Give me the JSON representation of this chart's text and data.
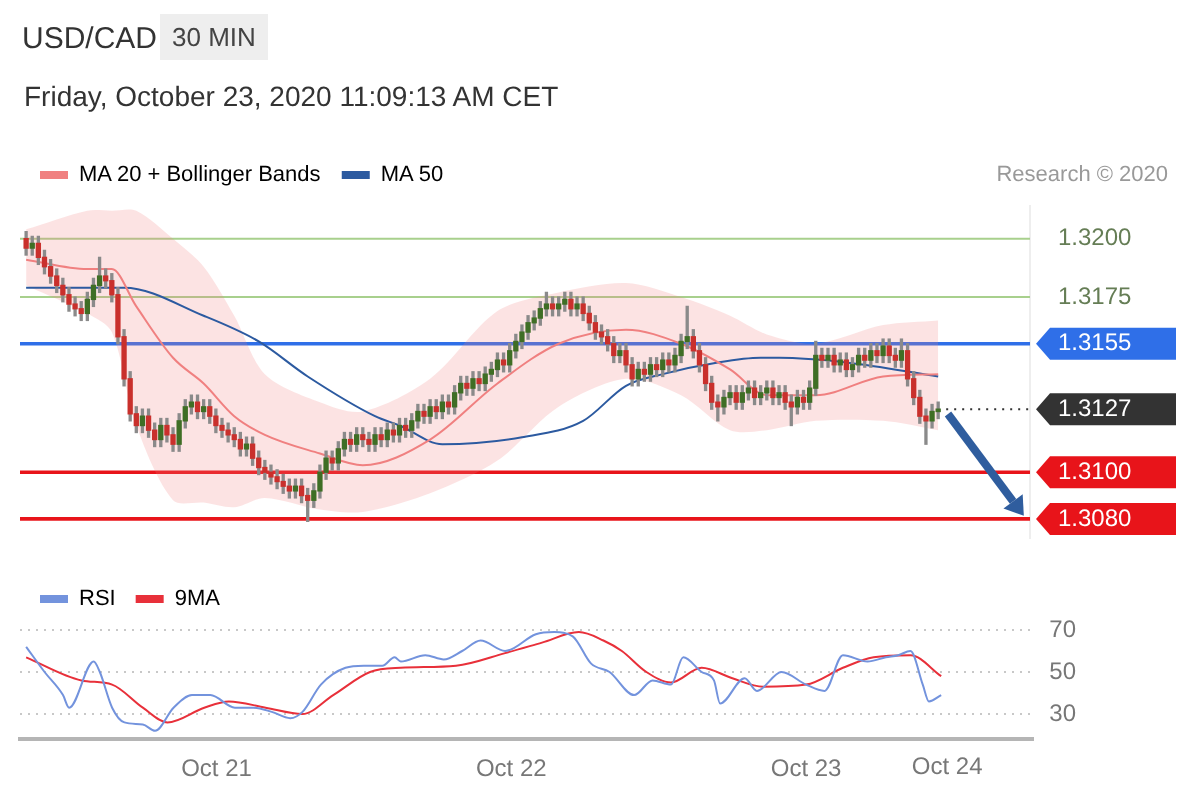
{
  "chart_data": [
    {
      "type": "candlestick",
      "title": "USD/CAD",
      "subtitle": "30 MIN",
      "annotations": [
        "Friday, October 23, 2020 11:09:13 AM CET",
        "Research © 2020"
      ],
      "x": [
        "2020-10-20T08:30",
        "2020-10-20T09:00",
        "2020-10-20T09:30",
        "2020-10-20T10:00",
        "2020-10-20T10:30",
        "2020-10-20T11:00",
        "2020-10-20T11:30",
        "2020-10-20T12:00",
        "2020-10-20T12:30",
        "2020-10-20T13:00",
        "2020-10-20T13:30",
        "2020-10-20T14:00",
        "2020-10-20T14:30",
        "2020-10-20T15:00",
        "2020-10-20T15:30",
        "2020-10-20T16:00",
        "2020-10-20T16:30",
        "2020-10-20T17:00",
        "2020-10-20T17:30",
        "2020-10-20T18:00",
        "2020-10-20T18:30",
        "2020-10-20T19:00",
        "2020-10-20T19:30",
        "2020-10-20T20:00",
        "2020-10-20T20:30",
        "2020-10-20T21:00",
        "2020-10-20T21:30",
        "2020-10-20T22:00",
        "2020-10-20T22:30",
        "2020-10-20T23:00",
        "2020-10-20T23:30",
        "2020-10-21T00:00",
        "2020-10-21T00:30",
        "2020-10-21T01:00",
        "2020-10-21T01:30",
        "2020-10-21T02:00",
        "2020-10-21T02:30",
        "2020-10-21T03:00",
        "2020-10-21T03:30",
        "2020-10-21T04:00",
        "2020-10-21T04:30",
        "2020-10-21T05:00",
        "2020-10-21T05:30",
        "2020-10-21T06:00",
        "2020-10-21T06:30",
        "2020-10-21T07:00",
        "2020-10-21T07:30",
        "2020-10-21T08:00",
        "2020-10-21T08:30",
        "2020-10-21T09:00",
        "2020-10-21T09:30",
        "2020-10-21T10:00",
        "2020-10-21T10:30",
        "2020-10-21T11:00",
        "2020-10-21T11:30",
        "2020-10-21T12:00",
        "2020-10-21T12:30",
        "2020-10-21T13:00",
        "2020-10-21T13:30",
        "2020-10-21T14:00",
        "2020-10-21T14:30",
        "2020-10-21T15:00",
        "2020-10-21T15:30",
        "2020-10-21T16:00",
        "2020-10-21T16:30",
        "2020-10-21T17:00",
        "2020-10-21T17:30",
        "2020-10-21T18:00",
        "2020-10-21T18:30",
        "2020-10-21T19:00",
        "2020-10-21T19:30",
        "2020-10-21T20:00",
        "2020-10-21T20:30",
        "2020-10-21T21:00",
        "2020-10-21T21:30",
        "2020-10-21T22:00",
        "2020-10-21T22:30",
        "2020-10-21T23:00",
        "2020-10-21T23:30",
        "2020-10-22T00:00",
        "2020-10-22T00:30",
        "2020-10-22T01:00",
        "2020-10-22T01:30",
        "2020-10-22T02:00",
        "2020-10-22T02:30",
        "2020-10-22T03:00",
        "2020-10-22T03:30",
        "2020-10-22T04:00",
        "2020-10-22T04:30",
        "2020-10-22T05:00",
        "2020-10-22T05:30",
        "2020-10-22T06:00",
        "2020-10-22T06:30",
        "2020-10-22T07:00",
        "2020-10-22T07:30",
        "2020-10-22T08:00",
        "2020-10-22T08:30",
        "2020-10-22T09:00",
        "2020-10-22T09:30",
        "2020-10-22T10:00",
        "2020-10-22T10:30",
        "2020-10-22T11:00",
        "2020-10-22T11:30",
        "2020-10-22T12:00",
        "2020-10-22T12:30",
        "2020-10-22T13:00",
        "2020-10-22T13:30",
        "2020-10-22T14:00",
        "2020-10-22T14:30",
        "2020-10-22T15:00",
        "2020-10-22T15:30",
        "2020-10-22T16:00",
        "2020-10-22T16:30",
        "2020-10-22T17:00",
        "2020-10-22T17:30",
        "2020-10-22T18:00",
        "2020-10-22T18:30",
        "2020-10-22T19:00",
        "2020-10-22T19:30",
        "2020-10-22T20:00",
        "2020-10-22T20:30",
        "2020-10-22T21:00",
        "2020-10-22T21:30",
        "2020-10-22T22:00",
        "2020-10-22T22:30",
        "2020-10-22T23:00",
        "2020-10-22T23:30",
        "2020-10-23T00:00",
        "2020-10-23T00:30",
        "2020-10-23T01:00",
        "2020-10-23T01:30",
        "2020-10-23T02:00",
        "2020-10-23T02:30",
        "2020-10-23T03:00",
        "2020-10-23T03:30",
        "2020-10-23T04:00",
        "2020-10-23T04:30",
        "2020-10-23T05:00",
        "2020-10-23T05:30",
        "2020-10-23T06:00",
        "2020-10-23T06:30",
        "2020-10-23T07:00",
        "2020-10-23T07:30",
        "2020-10-23T08:00",
        "2020-10-23T08:30",
        "2020-10-23T09:00",
        "2020-10-23T09:30",
        "2020-10-23T10:00",
        "2020-10-23T10:30",
        "2020-10-23T11:00"
      ],
      "ohlc": [
        [
          1.32,
          1.3203,
          1.3193,
          1.3196
        ],
        [
          1.3196,
          1.3201,
          1.3193,
          1.3198
        ],
        [
          1.3198,
          1.3201,
          1.3189,
          1.3192
        ],
        [
          1.3192,
          1.3195,
          1.3185,
          1.3188
        ],
        [
          1.3188,
          1.3191,
          1.3181,
          1.3184
        ],
        [
          1.3184,
          1.3187,
          1.3177,
          1.318
        ],
        [
          1.318,
          1.3183,
          1.3173,
          1.3176
        ],
        [
          1.3176,
          1.3179,
          1.3169,
          1.3172
        ],
        [
          1.3172,
          1.3175,
          1.3167,
          1.317
        ],
        [
          1.317,
          1.3173,
          1.3165,
          1.3168
        ],
        [
          1.3168,
          1.3177,
          1.3165,
          1.3174
        ],
        [
          1.3174,
          1.3183,
          1.3171,
          1.318
        ],
        [
          1.318,
          1.3192,
          1.3177,
          1.3184
        ],
        [
          1.3184,
          1.3187,
          1.3179,
          1.3182
        ],
        [
          1.3182,
          1.3185,
          1.3173,
          1.3176
        ],
        [
          1.3176,
          1.3179,
          1.3155,
          1.3158
        ],
        [
          1.3158,
          1.3161,
          1.3137,
          1.314
        ],
        [
          1.314,
          1.3143,
          1.3122,
          1.3125
        ],
        [
          1.3125,
          1.3128,
          1.3117,
          1.312
        ],
        [
          1.312,
          1.3127,
          1.3117,
          1.3124
        ],
        [
          1.3124,
          1.3127,
          1.3115,
          1.3118
        ],
        [
          1.3118,
          1.3121,
          1.3111,
          1.3114
        ],
        [
          1.3114,
          1.3123,
          1.3111,
          1.312
        ],
        [
          1.312,
          1.3123,
          1.3113,
          1.3116
        ],
        [
          1.3116,
          1.3119,
          1.3109,
          1.3112
        ],
        [
          1.3112,
          1.3125,
          1.3109,
          1.3122
        ],
        [
          1.3122,
          1.3131,
          1.3119,
          1.3128
        ],
        [
          1.3128,
          1.3133,
          1.3125,
          1.313
        ],
        [
          1.313,
          1.3133,
          1.3123,
          1.3126
        ],
        [
          1.3126,
          1.3131,
          1.3123,
          1.3128
        ],
        [
          1.3128,
          1.3131,
          1.3121,
          1.3124
        ],
        [
          1.3124,
          1.3127,
          1.3117,
          1.312
        ],
        [
          1.312,
          1.3123,
          1.3115,
          1.3118
        ],
        [
          1.3118,
          1.3121,
          1.3113,
          1.3116
        ],
        [
          1.3116,
          1.3119,
          1.3111,
          1.3114
        ],
        [
          1.3114,
          1.3117,
          1.3107,
          1.311
        ],
        [
          1.311,
          1.3115,
          1.3107,
          1.3112
        ],
        [
          1.3112,
          1.3115,
          1.3103,
          1.3106
        ],
        [
          1.3106,
          1.3109,
          1.3099,
          1.3102
        ],
        [
          1.3102,
          1.3105,
          1.3097,
          1.31
        ],
        [
          1.31,
          1.3103,
          1.3095,
          1.3098
        ],
        [
          1.3098,
          1.3101,
          1.3093,
          1.3096
        ],
        [
          1.3096,
          1.3099,
          1.3091,
          1.3094
        ],
        [
          1.3094,
          1.3097,
          1.3089,
          1.3092
        ],
        [
          1.3092,
          1.3097,
          1.3089,
          1.3094
        ],
        [
          1.3094,
          1.3097,
          1.3087,
          1.309
        ],
        [
          1.309,
          1.3093,
          1.3079,
          1.3088
        ],
        [
          1.3088,
          1.3095,
          1.3085,
          1.3092
        ],
        [
          1.3092,
          1.3103,
          1.3089,
          1.31
        ],
        [
          1.31,
          1.3109,
          1.3097,
          1.3106
        ],
        [
          1.3106,
          1.3109,
          1.3101,
          1.3104
        ],
        [
          1.3104,
          1.3113,
          1.3101,
          1.311
        ],
        [
          1.311,
          1.3117,
          1.3107,
          1.3114
        ],
        [
          1.3114,
          1.3117,
          1.3109,
          1.3112
        ],
        [
          1.3112,
          1.3119,
          1.3109,
          1.3116
        ],
        [
          1.3116,
          1.3119,
          1.3111,
          1.3114
        ],
        [
          1.3114,
          1.3117,
          1.3109,
          1.3112
        ],
        [
          1.3112,
          1.3119,
          1.3109,
          1.3116
        ],
        [
          1.3116,
          1.3119,
          1.3111,
          1.3114
        ],
        [
          1.3114,
          1.3121,
          1.3111,
          1.3118
        ],
        [
          1.3118,
          1.3121,
          1.3113,
          1.3116
        ],
        [
          1.3116,
          1.3123,
          1.3113,
          1.312
        ],
        [
          1.312,
          1.3123,
          1.3115,
          1.3118
        ],
        [
          1.3118,
          1.3125,
          1.3115,
          1.3122
        ],
        [
          1.3122,
          1.3129,
          1.3119,
          1.3126
        ],
        [
          1.3126,
          1.3129,
          1.3121,
          1.3124
        ],
        [
          1.3124,
          1.3131,
          1.3121,
          1.3128
        ],
        [
          1.3128,
          1.3131,
          1.3123,
          1.3126
        ],
        [
          1.3126,
          1.3133,
          1.3123,
          1.313
        ],
        [
          1.313,
          1.3133,
          1.3125,
          1.3128
        ],
        [
          1.3128,
          1.3137,
          1.3125,
          1.3134
        ],
        [
          1.3134,
          1.3141,
          1.3131,
          1.3138
        ],
        [
          1.3138,
          1.3141,
          1.3133,
          1.3136
        ],
        [
          1.3136,
          1.3143,
          1.3133,
          1.314
        ],
        [
          1.314,
          1.3143,
          1.3135,
          1.3138
        ],
        [
          1.3138,
          1.3145,
          1.3135,
          1.3142
        ],
        [
          1.3142,
          1.3147,
          1.3139,
          1.3144
        ],
        [
          1.3144,
          1.3151,
          1.3141,
          1.3148
        ],
        [
          1.3148,
          1.3151,
          1.3143,
          1.3146
        ],
        [
          1.3146,
          1.3155,
          1.3143,
          1.3152
        ],
        [
          1.3152,
          1.3159,
          1.3149,
          1.3156
        ],
        [
          1.3156,
          1.3163,
          1.3153,
          1.316
        ],
        [
          1.316,
          1.3167,
          1.3157,
          1.3164
        ],
        [
          1.3164,
          1.3169,
          1.3161,
          1.3166
        ],
        [
          1.3166,
          1.3173,
          1.3163,
          1.317
        ],
        [
          1.317,
          1.3177,
          1.3167,
          1.3172
        ],
        [
          1.3172,
          1.3175,
          1.3167,
          1.317
        ],
        [
          1.317,
          1.3175,
          1.3167,
          1.3172
        ],
        [
          1.3172,
          1.3177,
          1.3169,
          1.3174
        ],
        [
          1.3174,
          1.3177,
          1.3167,
          1.317
        ],
        [
          1.317,
          1.3175,
          1.3167,
          1.3172
        ],
        [
          1.3172,
          1.3175,
          1.3165,
          1.3168
        ],
        [
          1.3168,
          1.3171,
          1.3161,
          1.3164
        ],
        [
          1.3164,
          1.3167,
          1.3157,
          1.316
        ],
        [
          1.316,
          1.3163,
          1.3155,
          1.3158
        ],
        [
          1.3158,
          1.3161,
          1.3152,
          1.3155
        ],
        [
          1.3155,
          1.3158,
          1.3147,
          1.315
        ],
        [
          1.315,
          1.3155,
          1.3147,
          1.3152
        ],
        [
          1.3152,
          1.3155,
          1.3143,
          1.3146
        ],
        [
          1.3146,
          1.3149,
          1.3137,
          1.314
        ],
        [
          1.314,
          1.3147,
          1.3137,
          1.3144
        ],
        [
          1.3144,
          1.3147,
          1.3139,
          1.3142
        ],
        [
          1.3142,
          1.3149,
          1.3139,
          1.3146
        ],
        [
          1.3146,
          1.3149,
          1.3141,
          1.3144
        ],
        [
          1.3144,
          1.3151,
          1.3141,
          1.3148
        ],
        [
          1.3148,
          1.3151,
          1.3143,
          1.3146
        ],
        [
          1.3146,
          1.3153,
          1.3143,
          1.315
        ],
        [
          1.315,
          1.3159,
          1.3147,
          1.3156
        ],
        [
          1.3156,
          1.3171,
          1.3153,
          1.3158
        ],
        [
          1.3158,
          1.3161,
          1.3149,
          1.3152
        ],
        [
          1.3152,
          1.3155,
          1.3143,
          1.3146
        ],
        [
          1.3146,
          1.3149,
          1.3135,
          1.3138
        ],
        [
          1.3138,
          1.3141,
          1.3127,
          1.313
        ],
        [
          1.313,
          1.3133,
          1.3122,
          1.3128
        ],
        [
          1.3128,
          1.3135,
          1.3125,
          1.3132
        ],
        [
          1.3132,
          1.3137,
          1.3129,
          1.3134
        ],
        [
          1.3134,
          1.3137,
          1.3127,
          1.313
        ],
        [
          1.313,
          1.3137,
          1.3127,
          1.3134
        ],
        [
          1.3134,
          1.3139,
          1.3131,
          1.3136
        ],
        [
          1.3136,
          1.3139,
          1.3129,
          1.3132
        ],
        [
          1.3132,
          1.3137,
          1.3129,
          1.3134
        ],
        [
          1.3134,
          1.3139,
          1.3131,
          1.3136
        ],
        [
          1.3136,
          1.3139,
          1.3129,
          1.3132
        ],
        [
          1.3132,
          1.3137,
          1.3129,
          1.3134
        ],
        [
          1.3134,
          1.3137,
          1.3127,
          1.313
        ],
        [
          1.313,
          1.3133,
          1.312,
          1.3128
        ],
        [
          1.3128,
          1.3135,
          1.3125,
          1.3132
        ],
        [
          1.3132,
          1.3135,
          1.3127,
          1.313
        ],
        [
          1.313,
          1.3139,
          1.3127,
          1.3136
        ],
        [
          1.3136,
          1.3156,
          1.3133,
          1.315
        ],
        [
          1.315,
          1.3153,
          1.3145,
          1.3148
        ],
        [
          1.3148,
          1.3153,
          1.3145,
          1.315
        ],
        [
          1.315,
          1.3153,
          1.3143,
          1.3146
        ],
        [
          1.3146,
          1.3151,
          1.3143,
          1.3148
        ],
        [
          1.3148,
          1.3151,
          1.3141,
          1.3144
        ],
        [
          1.3144,
          1.3149,
          1.3141,
          1.3146
        ],
        [
          1.3146,
          1.3153,
          1.3143,
          1.315
        ],
        [
          1.315,
          1.3153,
          1.3145,
          1.3148
        ],
        [
          1.3148,
          1.3155,
          1.3145,
          1.3152
        ],
        [
          1.3152,
          1.3155,
          1.3147,
          1.315
        ],
        [
          1.315,
          1.3157,
          1.3147,
          1.3154
        ],
        [
          1.3154,
          1.3157,
          1.3147,
          1.315
        ],
        [
          1.315,
          1.3153,
          1.3145,
          1.3148
        ],
        [
          1.3148,
          1.3157,
          1.3145,
          1.3152
        ],
        [
          1.3152,
          1.3155,
          1.3137,
          1.314
        ],
        [
          1.314,
          1.3143,
          1.3129,
          1.3132
        ],
        [
          1.3132,
          1.3135,
          1.3121,
          1.3124
        ],
        [
          1.3124,
          1.3127,
          1.3112,
          1.3122
        ],
        [
          1.3122,
          1.3129,
          1.3119,
          1.3126
        ],
        [
          1.3126,
          1.313,
          1.3123,
          1.3127
        ]
      ],
      "colors": [
        "#c9302c",
        "#3f6e25",
        "#c9302c",
        "#c9302c",
        "#c9302c",
        "#c9302c",
        "#c9302c",
        "#c9302c",
        "#c9302c",
        "#c9302c",
        "#3f6e25",
        "#3f6e25",
        "#3f6e25",
        "#c9302c",
        "#c9302c",
        "#c9302c",
        "#c9302c",
        "#c9302c",
        "#c9302c",
        "#3f6e25",
        "#c9302c",
        "#c9302c",
        "#3f6e25",
        "#c9302c",
        "#c9302c",
        "#3f6e25",
        "#3f6e25",
        "#3f6e25",
        "#c9302c",
        "#3f6e25",
        "#c9302c",
        "#c9302c",
        "#c9302c",
        "#c9302c",
        "#c9302c",
        "#c9302c",
        "#3f6e25",
        "#c9302c",
        "#c9302c",
        "#c9302c",
        "#c9302c",
        "#c9302c",
        "#c9302c",
        "#c9302c",
        "#3f6e25",
        "#c9302c",
        "#c9302c",
        "#3f6e25",
        "#3f6e25",
        "#3f6e25",
        "#c9302c",
        "#3f6e25",
        "#3f6e25",
        "#c9302c",
        "#3f6e25",
        "#c9302c",
        "#c9302c",
        "#3f6e25",
        "#c9302c",
        "#3f6e25",
        "#c9302c",
        "#3f6e25",
        "#c9302c",
        "#3f6e25",
        "#3f6e25",
        "#c9302c",
        "#3f6e25",
        "#c9302c",
        "#3f6e25",
        "#c9302c",
        "#3f6e25",
        "#3f6e25",
        "#c9302c",
        "#3f6e25",
        "#c9302c",
        "#3f6e25",
        "#3f6e25",
        "#3f6e25",
        "#c9302c",
        "#3f6e25",
        "#3f6e25",
        "#3f6e25",
        "#3f6e25",
        "#3f6e25",
        "#3f6e25",
        "#3f6e25",
        "#c9302c",
        "#3f6e25",
        "#3f6e25",
        "#c9302c",
        "#3f6e25",
        "#c9302c",
        "#c9302c",
        "#c9302c",
        "#c9302c",
        "#c9302c",
        "#c9302c",
        "#3f6e25",
        "#c9302c",
        "#c9302c",
        "#3f6e25",
        "#c9302c",
        "#3f6e25",
        "#c9302c",
        "#3f6e25",
        "#c9302c",
        "#3f6e25",
        "#3f6e25",
        "#3f6e25",
        "#c9302c",
        "#c9302c",
        "#c9302c",
        "#c9302c",
        "#c9302c",
        "#3f6e25",
        "#3f6e25",
        "#c9302c",
        "#3f6e25",
        "#3f6e25",
        "#c9302c",
        "#3f6e25",
        "#3f6e25",
        "#c9302c",
        "#3f6e25",
        "#c9302c",
        "#c9302c",
        "#3f6e25",
        "#c9302c",
        "#3f6e25",
        "#3f6e25",
        "#c9302c",
        "#3f6e25",
        "#c9302c",
        "#3f6e25",
        "#c9302c",
        "#3f6e25",
        "#3f6e25",
        "#c9302c",
        "#3f6e25",
        "#c9302c",
        "#3f6e25",
        "#c9302c",
        "#c9302c",
        "#3f6e25",
        "#c9302c",
        "#c9302c",
        "#c9302c",
        "#c9302c",
        "#3f6e25",
        "#3f6e25"
      ],
      "series": [
        {
          "type": "line",
          "name": "MA 20 + Bollinger Bands",
          "color": "#f08080",
          "x": [
            "2020-10-20T08:30",
            "2020-10-20T13:30",
            "2020-10-20T15:30",
            "2020-10-20T17:30",
            "2020-10-20T20:30",
            "2020-10-20T23:00",
            "2020-10-21T01:30",
            "2020-10-21T04:00",
            "2020-10-21T08:30",
            "2020-10-21T12:00",
            "2020-10-21T17:30",
            "2020-10-21T23:00",
            "2020-10-22T04:00",
            "2020-10-22T09:30",
            "2020-10-22T14:00",
            "2020-10-22T18:00",
            "2020-10-22T21:00",
            "2020-10-23T01:00",
            "2020-10-23T06:30",
            "2020-10-23T11:00"
          ],
          "values": [
            1.3191,
            1.3187,
            1.3187,
            1.3171,
            1.3149,
            1.3138,
            1.3124,
            1.3116,
            1.3108,
            1.3103,
            1.3114,
            1.3138,
            1.3155,
            1.3161,
            1.3155,
            1.3144,
            1.3133,
            1.3133,
            1.3141,
            1.3142
          ],
          "lower": [
            1.318,
            1.3168,
            1.316,
            1.312,
            1.3088,
            1.3087,
            1.3085,
            1.3089,
            1.3084,
            1.3083,
            1.3091,
            1.3105,
            1.3128,
            1.314,
            1.3133,
            1.3118,
            1.3118,
            1.3122,
            1.3122,
            1.3118
          ],
          "upper": [
            1.3204,
            1.3212,
            1.3212,
            1.3212,
            1.32,
            1.3188,
            1.3167,
            1.3142,
            1.313,
            1.3126,
            1.314,
            1.3169,
            1.3177,
            1.3181,
            1.3175,
            1.3167,
            1.3159,
            1.3155,
            1.3163,
            1.3165
          ]
        },
        {
          "type": "line",
          "name": "MA 50",
          "color": "#2c5aa0",
          "x": [
            "2020-10-20T08:30",
            "2020-10-20T16:30",
            "2020-10-20T23:00",
            "2020-10-21T03:30",
            "2020-10-21T07:30",
            "2020-10-21T13:00",
            "2020-10-21T15:00",
            "2020-10-21T18:30",
            "2020-10-22T01:00",
            "2020-10-22T06:00",
            "2020-10-22T09:30",
            "2020-10-22T12:30",
            "2020-10-22T17:00",
            "2020-10-22T20:30",
            "2020-10-22T22:00",
            "2020-10-23T03:30",
            "2020-10-23T11:00"
          ],
          "values": [
            1.3179,
            1.3179,
            1.3167,
            1.3156,
            1.3141,
            1.3124,
            1.312,
            1.3112,
            1.3115,
            1.3122,
            1.3137,
            1.3142,
            1.3147,
            1.3149,
            1.3149,
            1.3147,
            1.3141
          ]
        }
      ],
      "ref_lines": [
        {
          "axis": "y",
          "value": 1.32,
          "color": "#a8d08d"
        },
        {
          "axis": "y",
          "value": 1.3175,
          "color": "#a8d08d"
        },
        {
          "axis": "y",
          "value": 1.3155,
          "color": "#2f6fe8"
        },
        {
          "axis": "y",
          "value": 1.3127,
          "color": "#333333",
          "line_style": "dotted"
        },
        {
          "axis": "y",
          "value": 1.31,
          "color": "#e8141a"
        },
        {
          "axis": "y",
          "value": 1.308,
          "color": "#e8141a"
        }
      ],
      "xlim": [
        "2020-10-20T08:00",
        "2020-10-23T18:30"
      ],
      "ylim": [
        1.3072,
        1.3214
      ],
      "yticks": [
        {
          "value": 1.308,
          "label": "1.3080"
        },
        {
          "value": 1.31,
          "label": "1.3100"
        },
        {
          "value": 1.3127,
          "label": "1.3127"
        },
        {
          "value": 1.3155,
          "label": "1.3155"
        },
        {
          "value": 1.3175,
          "label": "1.3175"
        },
        {
          "value": 1.32,
          "label": "1.3200"
        }
      ],
      "tick_labels": "y",
      "legend": "top left"
    },
    {
      "type": "line",
      "series": [
        {
          "name": "RSI",
          "color": "#7393dd",
          "x": [
            "2020-10-20T08:30",
            "2020-10-20T10:00",
            "2020-10-20T11:30",
            "2020-10-20T12:00",
            "2020-10-20T14:00",
            "2020-10-20T14:30",
            "2020-10-20T15:30",
            "2020-10-20T16:30",
            "2020-10-20T18:00",
            "2020-10-20T19:00",
            "2020-10-20T20:30",
            "2020-10-20T22:00",
            "2020-10-20T23:30",
            "2020-10-21T01:30",
            "2020-10-21T03:00",
            "2020-10-21T04:30",
            "2020-10-21T06:00",
            "2020-10-21T07:00",
            "2020-10-21T08:30",
            "2020-10-21T10:30",
            "2020-10-21T12:00",
            "2020-10-21T13:30",
            "2020-10-21T14:30",
            "2020-10-21T15:00",
            "2020-10-21T17:00",
            "2020-10-21T18:30",
            "2020-10-21T20:00",
            "2020-10-21T21:30",
            "2020-10-21T23:30",
            "2020-10-22T02:00",
            "2020-10-22T03:30",
            "2020-10-22T05:00",
            "2020-10-22T06:30",
            "2020-10-22T08:00",
            "2020-10-22T10:00",
            "2020-10-22T11:30",
            "2020-10-22T13:00",
            "2020-10-22T14:00",
            "2020-10-22T15:30",
            "2020-10-22T16:30",
            "2020-10-22T17:00",
            "2020-10-22T19:00",
            "2020-10-22T20:00",
            "2020-10-22T22:00",
            "2020-10-23T00:00",
            "2020-10-23T01:30",
            "2020-10-23T03:00",
            "2020-10-23T05:00",
            "2020-10-23T06:30",
            "2020-10-23T07:30",
            "2020-10-23T08:30",
            "2020-10-23T09:30",
            "2020-10-23T10:00",
            "2020-10-23T11:00"
          ],
          "values": [
            62,
            50,
            39,
            33,
            55,
            50,
            33,
            26,
            25,
            22,
            33,
            39,
            39,
            33,
            33,
            31,
            28,
            31,
            44,
            52,
            53,
            53,
            57,
            55,
            58,
            56,
            60,
            65,
            60,
            68,
            69,
            67,
            54,
            50,
            39,
            46,
            44,
            57,
            50,
            46,
            35,
            47,
            41,
            50,
            44,
            41,
            58,
            55,
            57,
            58,
            60,
            44,
            36,
            39
          ]
        },
        {
          "name": "9MA",
          "color": "#e8303a",
          "x": [
            "2020-10-20T08:30",
            "2020-10-20T13:00",
            "2020-10-20T15:30",
            "2020-10-20T18:00",
            "2020-10-20T20:00",
            "2020-10-20T23:00",
            "2020-10-21T01:00",
            "2020-10-21T04:00",
            "2020-10-21T07:00",
            "2020-10-21T09:30",
            "2020-10-21T12:30",
            "2020-10-21T15:00",
            "2020-10-21T19:30",
            "2020-10-21T23:30",
            "2020-10-22T02:30",
            "2020-10-22T05:30",
            "2020-10-22T07:30",
            "2020-10-22T09:00",
            "2020-10-22T11:00",
            "2020-10-22T13:00",
            "2020-10-22T15:30",
            "2020-10-22T18:00",
            "2020-10-22T20:30",
            "2020-10-23T00:00",
            "2020-10-23T03:00",
            "2020-10-23T05:30",
            "2020-10-23T08:30",
            "2020-10-23T11:00"
          ],
          "values": [
            57,
            46,
            44,
            33,
            26,
            33,
            36,
            33,
            30,
            39,
            50,
            52,
            53,
            59,
            64,
            69,
            65,
            60,
            50,
            45,
            52,
            47,
            43,
            44,
            52,
            57,
            58,
            48
          ]
        }
      ],
      "xlim": [
        "2020-10-20T08:00",
        "2020-10-23T18:30"
      ],
      "xticks": [
        {
          "value": "2020-10-21",
          "label": "Oct 21"
        },
        {
          "value": "2020-10-22",
          "label": "Oct 22"
        },
        {
          "value": "2020-10-23",
          "label": "Oct 23"
        }
      ],
      "annotations": [
        "Oct 24"
      ],
      "ylim": [
        18,
        70
      ],
      "yticks": [
        30,
        50,
        70
      ],
      "grid": "y",
      "legend": "top left"
    }
  ]
}
